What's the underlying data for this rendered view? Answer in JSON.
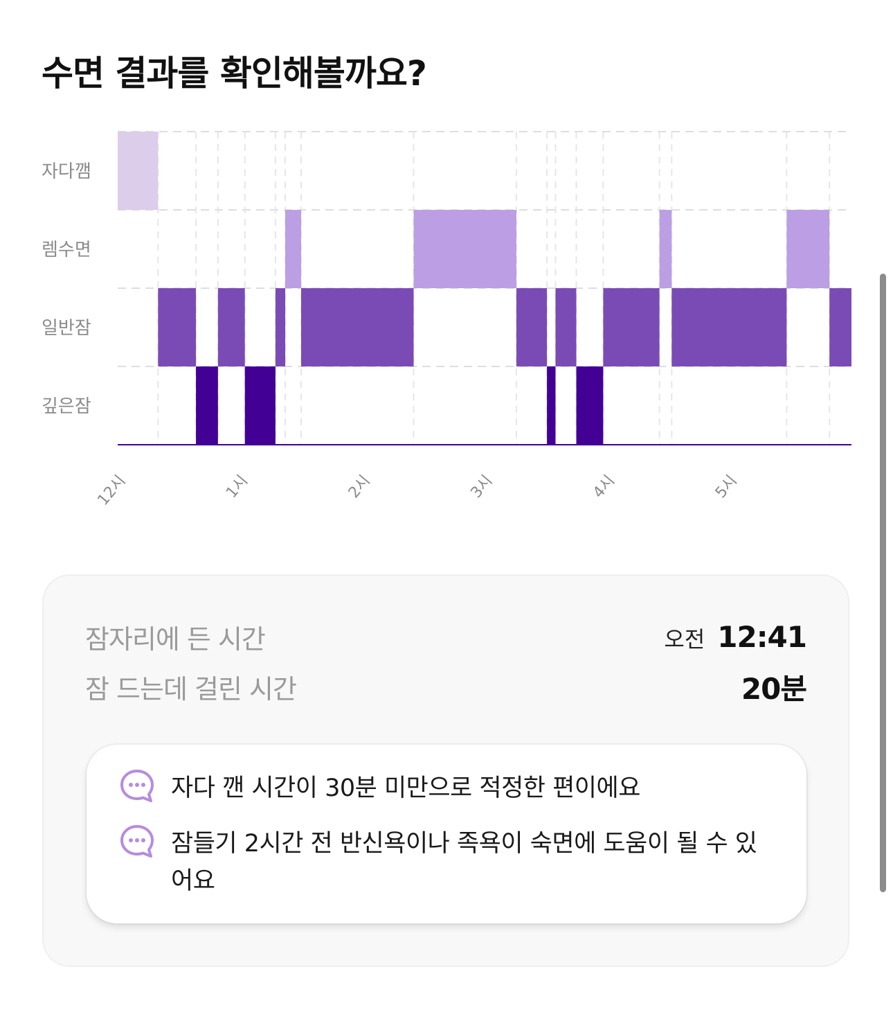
{
  "page_title": "수면 결과를 확인해볼까요?",
  "colors": {
    "awake": "#dccdeb",
    "rem": "#bb9ee3",
    "light": "#7b4bb5",
    "deep": "#430095",
    "tip_icon": "#b78be0"
  },
  "chart_data": {
    "type": "hypnogram",
    "title": "",
    "stages": [
      "자다깸",
      "렘수면",
      "일반잠",
      "깊은잠"
    ],
    "x_ticks": [
      "12시",
      "1시",
      "2시",
      "3시",
      "4시",
      "5시"
    ],
    "x_tick_hours": [
      0,
      1,
      2,
      3,
      4,
      5
    ],
    "x_range_hours": [
      0,
      6.0
    ],
    "grid": "dashed horizontal and vertical",
    "segments": [
      {
        "stage": "자다깸",
        "start": 0.0,
        "end": 0.33
      },
      {
        "stage": "일반잠",
        "start": 0.33,
        "end": 0.64
      },
      {
        "stage": "깊은잠",
        "start": 0.64,
        "end": 0.82
      },
      {
        "stage": "일반잠",
        "start": 0.82,
        "end": 1.04
      },
      {
        "stage": "깊은잠",
        "start": 1.04,
        "end": 1.29
      },
      {
        "stage": "일반잠",
        "start": 1.29,
        "end": 1.37
      },
      {
        "stage": "렘수면",
        "start": 1.37,
        "end": 1.5
      },
      {
        "stage": "일반잠",
        "start": 1.5,
        "end": 2.42
      },
      {
        "stage": "렘수면",
        "start": 2.42,
        "end": 3.26
      },
      {
        "stage": "일반잠",
        "start": 3.26,
        "end": 3.51
      },
      {
        "stage": "깊은잠",
        "start": 3.51,
        "end": 3.58
      },
      {
        "stage": "일반잠",
        "start": 3.58,
        "end": 3.75
      },
      {
        "stage": "깊은잠",
        "start": 3.75,
        "end": 3.97
      },
      {
        "stage": "일반잠",
        "start": 3.97,
        "end": 4.43
      },
      {
        "stage": "렘수면",
        "start": 4.43,
        "end": 4.53
      },
      {
        "stage": "일반잠",
        "start": 4.53,
        "end": 5.47
      },
      {
        "stage": "렘수면",
        "start": 5.47,
        "end": 5.82
      },
      {
        "stage": "일반잠",
        "start": 5.82,
        "end": 6.0
      }
    ]
  },
  "summary": {
    "bedtime_label": "잠자리에 든 시간",
    "bedtime_ampm": "오전",
    "bedtime_value": "12:41",
    "latency_label": "잠 드는데 걸린 시간",
    "latency_value": "20분"
  },
  "tips": [
    {
      "icon": "chat-bubble-icon",
      "text": "자다 깬 시간이 30분 미만으로 적정한 편이에요"
    },
    {
      "icon": "chat-bubble-icon",
      "text": "잠들기 2시간 전 반신욕이나 족욕이 숙면에 도움이 될 수 있어요"
    }
  ]
}
